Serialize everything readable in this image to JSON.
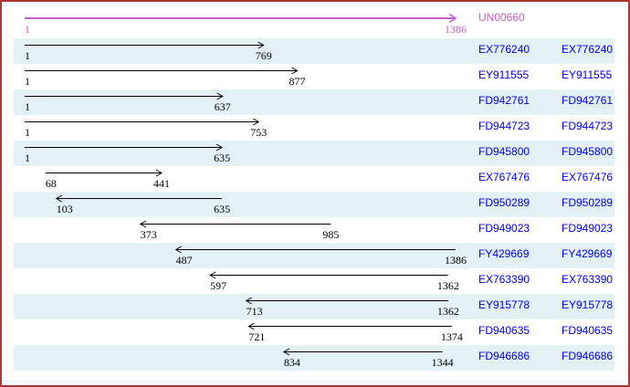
{
  "colors": {
    "frame_border": "#AF3535",
    "unigene_accent": "#C25EC4",
    "accession_link": "#0000EE",
    "row_stripe": "#E3F0F6",
    "read_arrow": "#000000"
  },
  "unigene": {
    "name": "UN00660",
    "start": "1",
    "end": "1386",
    "length": 1386,
    "direction": "forward"
  },
  "reads": [
    {
      "name": "EX776240",
      "from": 1,
      "to": 769,
      "direction": "forward"
    },
    {
      "name": "EY911555",
      "from": 1,
      "to": 877,
      "direction": "forward"
    },
    {
      "name": "FD942761",
      "from": 1,
      "to": 637,
      "direction": "forward"
    },
    {
      "name": "FD944723",
      "from": 1,
      "to": 753,
      "direction": "forward"
    },
    {
      "name": "FD945800",
      "from": 1,
      "to": 635,
      "direction": "forward"
    },
    {
      "name": "EX767476",
      "from": 68,
      "to": 441,
      "direction": "forward"
    },
    {
      "name": "FD950289",
      "from": 103,
      "to": 635,
      "direction": "reverse"
    },
    {
      "name": "FD949023",
      "from": 373,
      "to": 985,
      "direction": "reverse"
    },
    {
      "name": "FY429669",
      "from": 487,
      "to": 1386,
      "direction": "reverse"
    },
    {
      "name": "EX763390",
      "from": 597,
      "to": 1362,
      "direction": "reverse"
    },
    {
      "name": "EY915778",
      "from": 713,
      "to": 1362,
      "direction": "reverse"
    },
    {
      "name": "FD940635",
      "from": 721,
      "to": 1374,
      "direction": "reverse"
    },
    {
      "name": "FD946686",
      "from": 834,
      "to": 1344,
      "direction": "reverse"
    }
  ]
}
